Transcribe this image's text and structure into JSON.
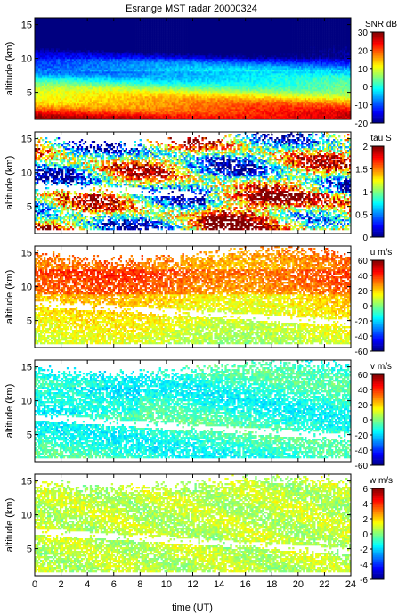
{
  "chart_data": {
    "type": "heatmap",
    "title": "Esrange MST radar 20000324",
    "xlabel": "time (UT)",
    "xlim": [
      0,
      24
    ],
    "xticks": [
      "0",
      "2",
      "4",
      "6",
      "8",
      "10",
      "12",
      "14",
      "16",
      "18",
      "20",
      "22",
      "24"
    ],
    "panels": [
      {
        "name": "snr",
        "ylabel": "altitude (km)",
        "ylim": [
          1,
          16
        ],
        "yticks": [
          "5",
          "10",
          "15"
        ],
        "colorbar_label": "SNR dB",
        "clim": [
          -20,
          30
        ],
        "colorbar_ticks": [
          "-20",
          "-10",
          "0",
          "10",
          "20",
          "30"
        ],
        "colormap": "jet",
        "fill": "dense"
      },
      {
        "name": "tau",
        "ylabel": "altitude (km)",
        "ylim": [
          1,
          16
        ],
        "yticks": [
          "5",
          "10",
          "15"
        ],
        "colorbar_label": "tau S",
        "clim": [
          0,
          2
        ],
        "colorbar_ticks": [
          "0",
          "0.5",
          "1",
          "1.5",
          "2"
        ],
        "colormap": "jet",
        "fill": "sparse"
      },
      {
        "name": "u",
        "ylabel": "altitude (km)",
        "ylim": [
          1,
          16
        ],
        "yticks": [
          "5",
          "10",
          "15"
        ],
        "colorbar_label": "u m/s",
        "clim": [
          -60,
          60
        ],
        "colorbar_ticks": [
          "-60",
          "-40",
          "-20",
          "0",
          "20",
          "40",
          "60"
        ],
        "colormap": "jet",
        "fill": "sparse"
      },
      {
        "name": "v",
        "ylabel": "altitude (km)",
        "ylim": [
          1,
          16
        ],
        "yticks": [
          "5",
          "10",
          "15"
        ],
        "colorbar_label": "v m/s",
        "clim": [
          -60,
          60
        ],
        "colorbar_ticks": [
          "-60",
          "-40",
          "-20",
          "0",
          "20",
          "40",
          "60"
        ],
        "colormap": "jet",
        "fill": "sparse"
      },
      {
        "name": "w",
        "ylabel": "altitude (km)",
        "ylim": [
          1,
          16
        ],
        "yticks": [
          "5",
          "10",
          "15"
        ],
        "colorbar_label": "w m/s",
        "clim": [
          -6,
          6
        ],
        "colorbar_ticks": [
          "-6",
          "-4",
          "-2",
          "0",
          "2",
          "4",
          "6"
        ],
        "colormap": "jet",
        "fill": "sparse"
      }
    ]
  }
}
